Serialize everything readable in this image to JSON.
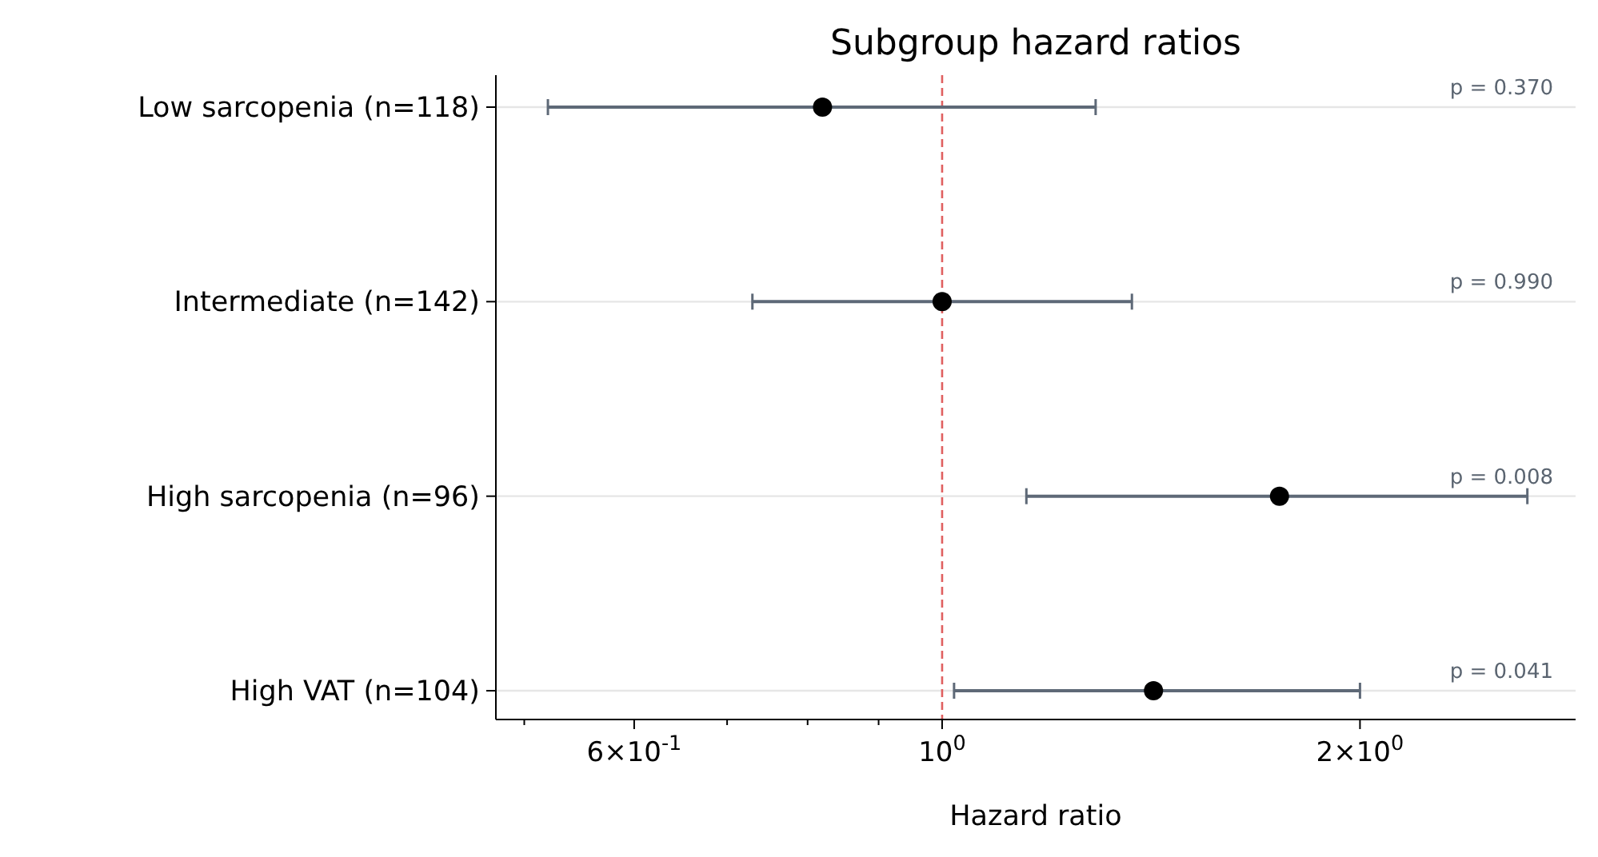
{
  "chart_data": {
    "type": "scatter",
    "title": "Subgroup hazard ratios",
    "xlabel": "Hazard ratio",
    "orientation": "horizontal",
    "log": "x",
    "categories": [
      "Low sarcopenia (n=118)",
      "Intermediate (n=142)",
      "High sarcopenia (n=96)",
      "High VAT (n=104)"
    ],
    "series": [
      {
        "color": "#000000",
        "values": [
          0.82,
          1.0,
          1.75,
          1.42
        ],
        "errors": [
          [
            0.52,
            1.29
          ],
          [
            0.73,
            1.37
          ],
          [
            1.15,
            2.64
          ],
          [
            1.02,
            2.0
          ]
        ]
      }
    ],
    "marker": "circle",
    "grid": "y",
    "xlim": [
      0.477,
      2.86
    ],
    "xticks": [
      {
        "value": 0.5,
        "label": null
      },
      {
        "value": 0.6,
        "label": "6×10$^{-1}$"
      },
      {
        "value": 0.7,
        "label": null
      },
      {
        "value": 0.8,
        "label": null
      },
      {
        "value": 0.9,
        "label": null
      },
      {
        "value": 1,
        "label": "10$^{0}$"
      },
      {
        "value": 2,
        "label": "2×10$^{0}$"
      }
    ],
    "ref_lines": [
      {
        "axis": "x",
        "value": 1,
        "label": null,
        "color": "#e06060",
        "line_style": "dashed"
      }
    ],
    "annotations": [
      "p = 0.370",
      "p = 0.990",
      "p = 0.008",
      "p = 0.041"
    ]
  }
}
